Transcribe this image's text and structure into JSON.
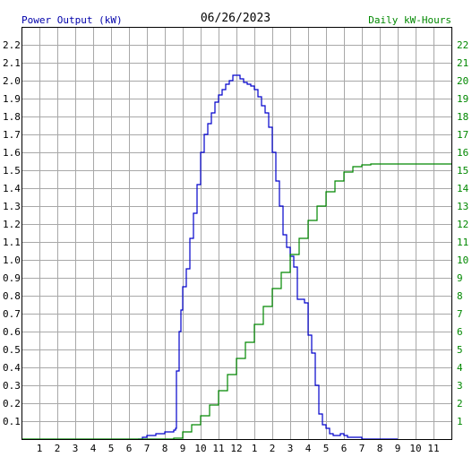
{
  "header": {
    "left_label": "Power Output (kW)",
    "title": "06/26/2023",
    "right_label": "Daily kW-Hours"
  },
  "colors": {
    "power": "#0000cc",
    "energy": "#008800",
    "grid": "#a8a8a8",
    "frame": "#000000",
    "left_text": "#0000aa",
    "right_text": "#008800"
  },
  "chart_data": {
    "type": "line",
    "title": "06/26/2023",
    "grid": true,
    "x_axis": {
      "range_hours": [
        0,
        24
      ],
      "tick_labels": [
        "1",
        "2",
        "3",
        "4",
        "5",
        "6",
        "7",
        "8",
        "9",
        "10",
        "11",
        "12",
        "1",
        "2",
        "3",
        "4",
        "5",
        "6",
        "7",
        "8",
        "9",
        "10",
        "11"
      ]
    },
    "y_left": {
      "label": "Power Output (kW)",
      "range": [
        0,
        2.3
      ],
      "tick_labels": [
        "0.1",
        "0.2",
        "0.3",
        "0.4",
        "0.5",
        "0.6",
        "0.7",
        "0.8",
        "0.9",
        "1.0",
        "1.1",
        "1.2",
        "1.3",
        "1.4",
        "1.5",
        "1.6",
        "1.7",
        "1.8",
        "1.9",
        "2.0",
        "2.1",
        "2.2"
      ]
    },
    "y_right": {
      "label": "Daily kW-Hours",
      "range": [
        0,
        23
      ],
      "tick_labels": [
        "1",
        "2",
        "3",
        "4",
        "5",
        "6",
        "7",
        "8",
        "9",
        "10",
        "11",
        "12",
        "13",
        "14",
        "15",
        "16",
        "17",
        "18",
        "19",
        "20",
        "21",
        "22"
      ]
    },
    "series": [
      {
        "name": "Power Output (kW)",
        "axis": "left",
        "x": [
          6.5,
          6.75,
          7.0,
          7.5,
          8.0,
          8.5,
          8.6,
          8.65,
          8.8,
          8.9,
          9.0,
          9.2,
          9.4,
          9.6,
          9.8,
          10.0,
          10.2,
          10.4,
          10.6,
          10.8,
          11.0,
          11.2,
          11.4,
          11.6,
          11.8,
          12.0,
          12.2,
          12.4,
          12.6,
          12.8,
          13.0,
          13.2,
          13.4,
          13.6,
          13.8,
          14.0,
          14.2,
          14.4,
          14.6,
          14.8,
          15.0,
          15.2,
          15.4,
          15.6,
          15.8,
          16.0,
          16.2,
          16.4,
          16.6,
          16.8,
          17.0,
          17.2,
          17.4,
          17.6,
          17.8,
          18.0,
          18.2,
          18.4,
          18.6,
          18.8,
          19.0,
          19.2,
          19.4,
          19.6,
          19.8,
          20.0,
          20.2,
          20.4,
          20.6,
          20.8,
          21.0
        ],
        "y": [
          0.0,
          0.01,
          0.02,
          0.03,
          0.04,
          0.05,
          0.06,
          0.38,
          0.6,
          0.72,
          0.85,
          0.95,
          1.12,
          1.26,
          1.42,
          1.6,
          1.7,
          1.76,
          1.82,
          1.88,
          1.92,
          1.95,
          1.98,
          2.0,
          2.03,
          2.03,
          2.01,
          1.99,
          1.98,
          1.97,
          1.95,
          1.91,
          1.86,
          1.82,
          1.74,
          1.6,
          1.44,
          1.3,
          1.14,
          1.07,
          1.02,
          0.96,
          0.78,
          0.78,
          0.76,
          0.58,
          0.48,
          0.3,
          0.14,
          0.08,
          0.06,
          0.03,
          0.02,
          0.02,
          0.03,
          0.02,
          0.01,
          0.01,
          0.01,
          0.01,
          0.0,
          0.0,
          0.0,
          0.0,
          0.0,
          0.0,
          0.0,
          0.0,
          0.0,
          0.0,
          0.0
        ]
      },
      {
        "name": "Daily kW-Hours",
        "axis": "right",
        "x": [
          0,
          8.0,
          8.5,
          9.0,
          9.5,
          10.0,
          10.5,
          11.0,
          11.5,
          12.0,
          12.5,
          13.0,
          13.5,
          14.0,
          14.5,
          15.0,
          15.5,
          16.0,
          16.5,
          17.0,
          17.5,
          18.0,
          18.5,
          19.0,
          19.5,
          20.0,
          21.0,
          24.0
        ],
        "y": [
          0,
          0,
          0.05,
          0.4,
          0.8,
          1.3,
          1.9,
          2.7,
          3.6,
          4.5,
          5.4,
          6.4,
          7.4,
          8.4,
          9.3,
          10.3,
          11.2,
          12.2,
          13.0,
          13.8,
          14.4,
          14.9,
          15.2,
          15.3,
          15.35,
          15.35,
          15.35,
          15.35
        ]
      }
    ]
  }
}
